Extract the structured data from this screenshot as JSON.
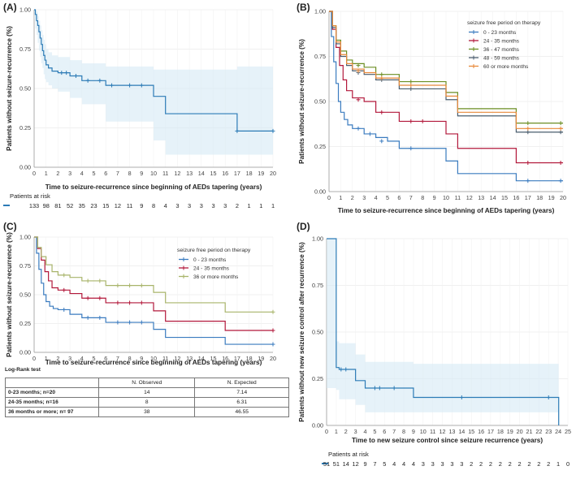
{
  "panels": {
    "A": {
      "label": "(A)"
    },
    "B": {
      "label": "(B)"
    },
    "C": {
      "label": "(C)"
    },
    "D": {
      "label": "(D)"
    }
  },
  "log_rank": {
    "title": "Log-Rank test",
    "headers": [
      "",
      "N. Observed",
      "N. Expected"
    ],
    "rows": [
      [
        "0-23 months; n=20",
        "14",
        "7.14"
      ],
      [
        "24-35 months; n=16",
        "8",
        "6.31"
      ],
      [
        "36 months or more;  n= 97",
        "38",
        "46.55"
      ]
    ]
  },
  "chart_data": [
    {
      "id": "A",
      "type": "line",
      "step": true,
      "ylabel": "Patients without seizure-recurrence (%)",
      "xlabel": "Time to seizure-recurrence since beginning of AEDs tapering (years)",
      "xlim": [
        0,
        20
      ],
      "ylim": [
        0,
        1
      ],
      "xticks": [
        0,
        1,
        2,
        3,
        4,
        5,
        6,
        7,
        8,
        9,
        10,
        11,
        12,
        13,
        14,
        15,
        16,
        17,
        18,
        19,
        20
      ],
      "yticks": [
        0,
        0.25,
        0.5,
        0.75,
        1
      ],
      "ytick_labels": [
        "0.00",
        "0.25",
        "0.50",
        "0.75",
        "1.00"
      ],
      "confidence_band": true,
      "series": [
        {
          "name": "",
          "color": "#2c7bb6",
          "x": [
            0,
            0.1,
            0.2,
            0.3,
            0.4,
            0.5,
            0.6,
            0.7,
            0.8,
            0.9,
            1.0,
            1.2,
            1.5,
            2,
            3,
            4,
            6,
            10,
            11,
            17,
            20
          ],
          "y": [
            1,
            0.97,
            0.93,
            0.9,
            0.86,
            0.82,
            0.78,
            0.74,
            0.71,
            0.68,
            0.65,
            0.63,
            0.61,
            0.6,
            0.58,
            0.55,
            0.52,
            0.45,
            0.34,
            0.23,
            0.23
          ],
          "lower": [
            1,
            0.94,
            0.88,
            0.84,
            0.79,
            0.74,
            0.7,
            0.66,
            0.63,
            0.59,
            0.56,
            0.54,
            0.52,
            0.5,
            0.48,
            0.44,
            0.4,
            0.29,
            0.17,
            0.08,
            0.08
          ],
          "upper": [
            1,
            1,
            0.99,
            0.96,
            0.93,
            0.9,
            0.87,
            0.84,
            0.81,
            0.78,
            0.75,
            0.73,
            0.71,
            0.7,
            0.68,
            0.66,
            0.64,
            0.62,
            0.62,
            0.64,
            0.64
          ],
          "censored": [
            [
              2.3,
              0.6
            ],
            [
              2.7,
              0.6
            ],
            [
              3.5,
              0.58
            ],
            [
              4.5,
              0.55
            ],
            [
              5.5,
              0.55
            ],
            [
              6.5,
              0.52
            ],
            [
              8,
              0.52
            ],
            [
              9,
              0.52
            ],
            [
              17,
              0.23
            ],
            [
              20,
              0.23
            ]
          ]
        }
      ],
      "risk_table": {
        "title": "Patients at risk",
        "values": [
          "133",
          "98",
          "81",
          "52",
          "35",
          "23",
          "15",
          "12",
          "11",
          "9",
          "8",
          "4",
          "3",
          "3",
          "3",
          "3",
          "3",
          "2",
          "1",
          "1",
          "1"
        ]
      }
    },
    {
      "id": "B",
      "type": "line",
      "step": true,
      "ylabel": "Patients without seizure-recurrence (%)",
      "xlabel": "Time to seizure-recurrence since beginning of AEDs tapering (years)",
      "xlim": [
        0,
        20
      ],
      "ylim": [
        0,
        1
      ],
      "xticks": [
        0,
        1,
        2,
        3,
        4,
        5,
        6,
        7,
        8,
        9,
        10,
        11,
        12,
        13,
        14,
        15,
        16,
        17,
        18,
        19,
        20
      ],
      "yticks": [
        0,
        0.25,
        0.5,
        0.75,
        1
      ],
      "ytick_labels": [
        "0.00",
        "0.25",
        "0.50",
        "0.75",
        "1.00"
      ],
      "legend": {
        "title": "seizure free period on therapy",
        "position": "top-right"
      },
      "series": [
        {
          "name": "0 - 23 months",
          "color": "#3a7bbf",
          "x": [
            0,
            0.2,
            0.4,
            0.6,
            0.8,
            1,
            1.3,
            1.6,
            2,
            3,
            4,
            5,
            6,
            10,
            11,
            16,
            20
          ],
          "y": [
            1,
            0.86,
            0.72,
            0.6,
            0.5,
            0.44,
            0.4,
            0.37,
            0.35,
            0.32,
            0.3,
            0.28,
            0.24,
            0.17,
            0.1,
            0.06,
            0.06
          ],
          "censored": [
            [
              2.5,
              0.35
            ],
            [
              3.5,
              0.32
            ],
            [
              4.5,
              0.28
            ],
            [
              7,
              0.24
            ],
            [
              17,
              0.06
            ],
            [
              19.8,
              0.06
            ]
          ]
        },
        {
          "name": "24 - 35 months",
          "color": "#b2183b",
          "x": [
            0,
            0.3,
            0.6,
            0.9,
            1.2,
            1.5,
            2,
            3,
            4,
            6,
            10,
            11,
            16,
            20
          ],
          "y": [
            1,
            0.9,
            0.8,
            0.7,
            0.62,
            0.56,
            0.52,
            0.5,
            0.44,
            0.39,
            0.32,
            0.24,
            0.16,
            0.16
          ],
          "censored": [
            [
              2.5,
              0.51
            ],
            [
              4.5,
              0.44
            ],
            [
              7,
              0.39
            ],
            [
              8,
              0.39
            ],
            [
              17,
              0.16
            ],
            [
              19.8,
              0.16
            ]
          ]
        },
        {
          "name": "36 - 47 months",
          "color": "#6b8e23",
          "x": [
            0,
            0.3,
            0.6,
            1,
            1.5,
            2,
            3,
            4,
            6,
            10,
            11,
            16,
            20
          ],
          "y": [
            1,
            0.92,
            0.84,
            0.78,
            0.73,
            0.71,
            0.69,
            0.65,
            0.61,
            0.55,
            0.46,
            0.38,
            0.38
          ],
          "censored": [
            [
              2.5,
              0.7
            ],
            [
              4.5,
              0.65
            ],
            [
              7,
              0.61
            ],
            [
              17,
              0.38
            ],
            [
              19.8,
              0.38
            ]
          ]
        },
        {
          "name": "48 - 59 months",
          "color": "#4a5d6e",
          "x": [
            0,
            0.3,
            0.6,
            1,
            1.5,
            2,
            3,
            4,
            6,
            10,
            11,
            16,
            20
          ],
          "y": [
            1,
            0.91,
            0.82,
            0.75,
            0.7,
            0.67,
            0.65,
            0.62,
            0.57,
            0.51,
            0.42,
            0.33,
            0.33
          ],
          "censored": [
            [
              2.5,
              0.66
            ],
            [
              4.5,
              0.62
            ],
            [
              7,
              0.57
            ],
            [
              17,
              0.33
            ],
            [
              19.8,
              0.33
            ]
          ]
        },
        {
          "name": "60 or more months",
          "color": "#e8893a",
          "x": [
            0,
            0.3,
            0.6,
            1,
            1.5,
            2,
            3,
            4,
            6,
            10,
            11,
            16,
            20
          ],
          "y": [
            1,
            0.92,
            0.83,
            0.76,
            0.71,
            0.68,
            0.66,
            0.63,
            0.59,
            0.53,
            0.44,
            0.35,
            0.35
          ],
          "censored": [
            [
              2.5,
              0.67
            ],
            [
              4.5,
              0.63
            ],
            [
              7,
              0.59
            ],
            [
              17,
              0.35
            ],
            [
              19.8,
              0.35
            ]
          ]
        }
      ]
    },
    {
      "id": "C",
      "type": "line",
      "step": true,
      "ylabel": "Patients without seizure-recurrence (%)",
      "xlabel": "Time to seizure-recurrence since beginning of AEDs tapering (years)",
      "xlim": [
        0,
        20
      ],
      "ylim": [
        0,
        1
      ],
      "xticks": [
        0,
        1,
        2,
        3,
        4,
        5,
        6,
        7,
        8,
        9,
        10,
        11,
        12,
        13,
        14,
        15,
        16,
        17,
        18,
        19,
        20
      ],
      "yticks": [
        0,
        0.25,
        0.5,
        0.75,
        1
      ],
      "ytick_labels": [
        "0.00",
        "0.25",
        "0.50",
        "0.75",
        "1.00"
      ],
      "legend": {
        "title": "seizure free period on therapy",
        "position": "top-right"
      },
      "series": [
        {
          "name": "0 - 23 months",
          "color": "#3a7bbf",
          "x": [
            0,
            0.2,
            0.4,
            0.6,
            0.8,
            1,
            1.3,
            1.6,
            2,
            3,
            4,
            6,
            10,
            11,
            16,
            20
          ],
          "y": [
            1,
            0.86,
            0.72,
            0.6,
            0.5,
            0.44,
            0.4,
            0.38,
            0.37,
            0.33,
            0.3,
            0.26,
            0.2,
            0.13,
            0.07,
            0.07
          ],
          "censored": [
            [
              2.5,
              0.37
            ],
            [
              4.5,
              0.3
            ],
            [
              5.5,
              0.3
            ],
            [
              7,
              0.26
            ],
            [
              8,
              0.26
            ],
            [
              9,
              0.26
            ],
            [
              20,
              0.07
            ]
          ]
        },
        {
          "name": "24 - 35 months",
          "color": "#b2183b",
          "x": [
            0,
            0.3,
            0.6,
            0.9,
            1.2,
            1.5,
            2,
            3,
            4,
            6,
            10,
            11,
            16,
            20
          ],
          "y": [
            1,
            0.9,
            0.8,
            0.7,
            0.62,
            0.56,
            0.54,
            0.51,
            0.47,
            0.43,
            0.36,
            0.27,
            0.19,
            0.19
          ],
          "censored": [
            [
              2.5,
              0.54
            ],
            [
              4.5,
              0.47
            ],
            [
              5.5,
              0.47
            ],
            [
              7,
              0.43
            ],
            [
              8,
              0.43
            ],
            [
              9,
              0.43
            ],
            [
              20,
              0.19
            ]
          ]
        },
        {
          "name": "36 or more months",
          "color": "#a8b46a",
          "x": [
            0,
            0.3,
            0.6,
            1,
            1.5,
            2,
            3,
            4,
            6,
            10,
            11,
            16,
            20
          ],
          "y": [
            1,
            0.91,
            0.83,
            0.76,
            0.7,
            0.67,
            0.65,
            0.62,
            0.58,
            0.52,
            0.43,
            0.35,
            0.35
          ],
          "censored": [
            [
              2.5,
              0.67
            ],
            [
              4.5,
              0.62
            ],
            [
              5.5,
              0.62
            ],
            [
              7,
              0.58
            ],
            [
              8,
              0.58
            ],
            [
              9,
              0.58
            ],
            [
              20,
              0.35
            ]
          ]
        }
      ]
    },
    {
      "id": "D",
      "type": "line",
      "step": true,
      "ylabel": "Patients without new seizure control after recurrence (%)",
      "xlabel": "Time to new seizure control since seizure recurrence (years)",
      "xlim": [
        0,
        25
      ],
      "ylim": [
        0,
        1
      ],
      "xticks": [
        0,
        1,
        2,
        3,
        4,
        5,
        6,
        7,
        8,
        9,
        10,
        11,
        12,
        13,
        14,
        15,
        16,
        17,
        18,
        19,
        20,
        21,
        22,
        23,
        24,
        25
      ],
      "yticks": [
        0,
        0.25,
        0.5,
        0.75,
        1
      ],
      "ytick_labels": [
        "0.00",
        "0.25",
        "0.50",
        "0.75",
        "1.00"
      ],
      "confidence_band": true,
      "series": [
        {
          "name": "",
          "color": "#2c7bb6",
          "x": [
            0,
            1,
            1.3,
            3,
            4,
            9,
            24,
            24.05
          ],
          "y": [
            1,
            0.31,
            0.3,
            0.24,
            0.2,
            0.15,
            0.15,
            0
          ],
          "lower": [
            1,
            0.2,
            0.19,
            0.14,
            0.11,
            0.07,
            0.07,
            0.07
          ],
          "upper": [
            1,
            0.45,
            0.44,
            0.38,
            0.34,
            0.33,
            0.33,
            0.33
          ],
          "censored": [
            [
              1.5,
              0.3
            ],
            [
              2,
              0.3
            ],
            [
              5,
              0.2
            ],
            [
              5.5,
              0.2
            ],
            [
              7,
              0.2
            ],
            [
              14,
              0.15
            ],
            [
              23,
              0.15
            ]
          ]
        }
      ],
      "risk_table": {
        "title": "Patients at risk",
        "values": [
          "51",
          "51",
          "14",
          "12",
          "9",
          "7",
          "5",
          "4",
          "4",
          "4",
          "3",
          "3",
          "3",
          "3",
          "3",
          "2",
          "2",
          "2",
          "2",
          "2",
          "2",
          "2",
          "2",
          "2",
          "1",
          "0"
        ]
      }
    }
  ]
}
